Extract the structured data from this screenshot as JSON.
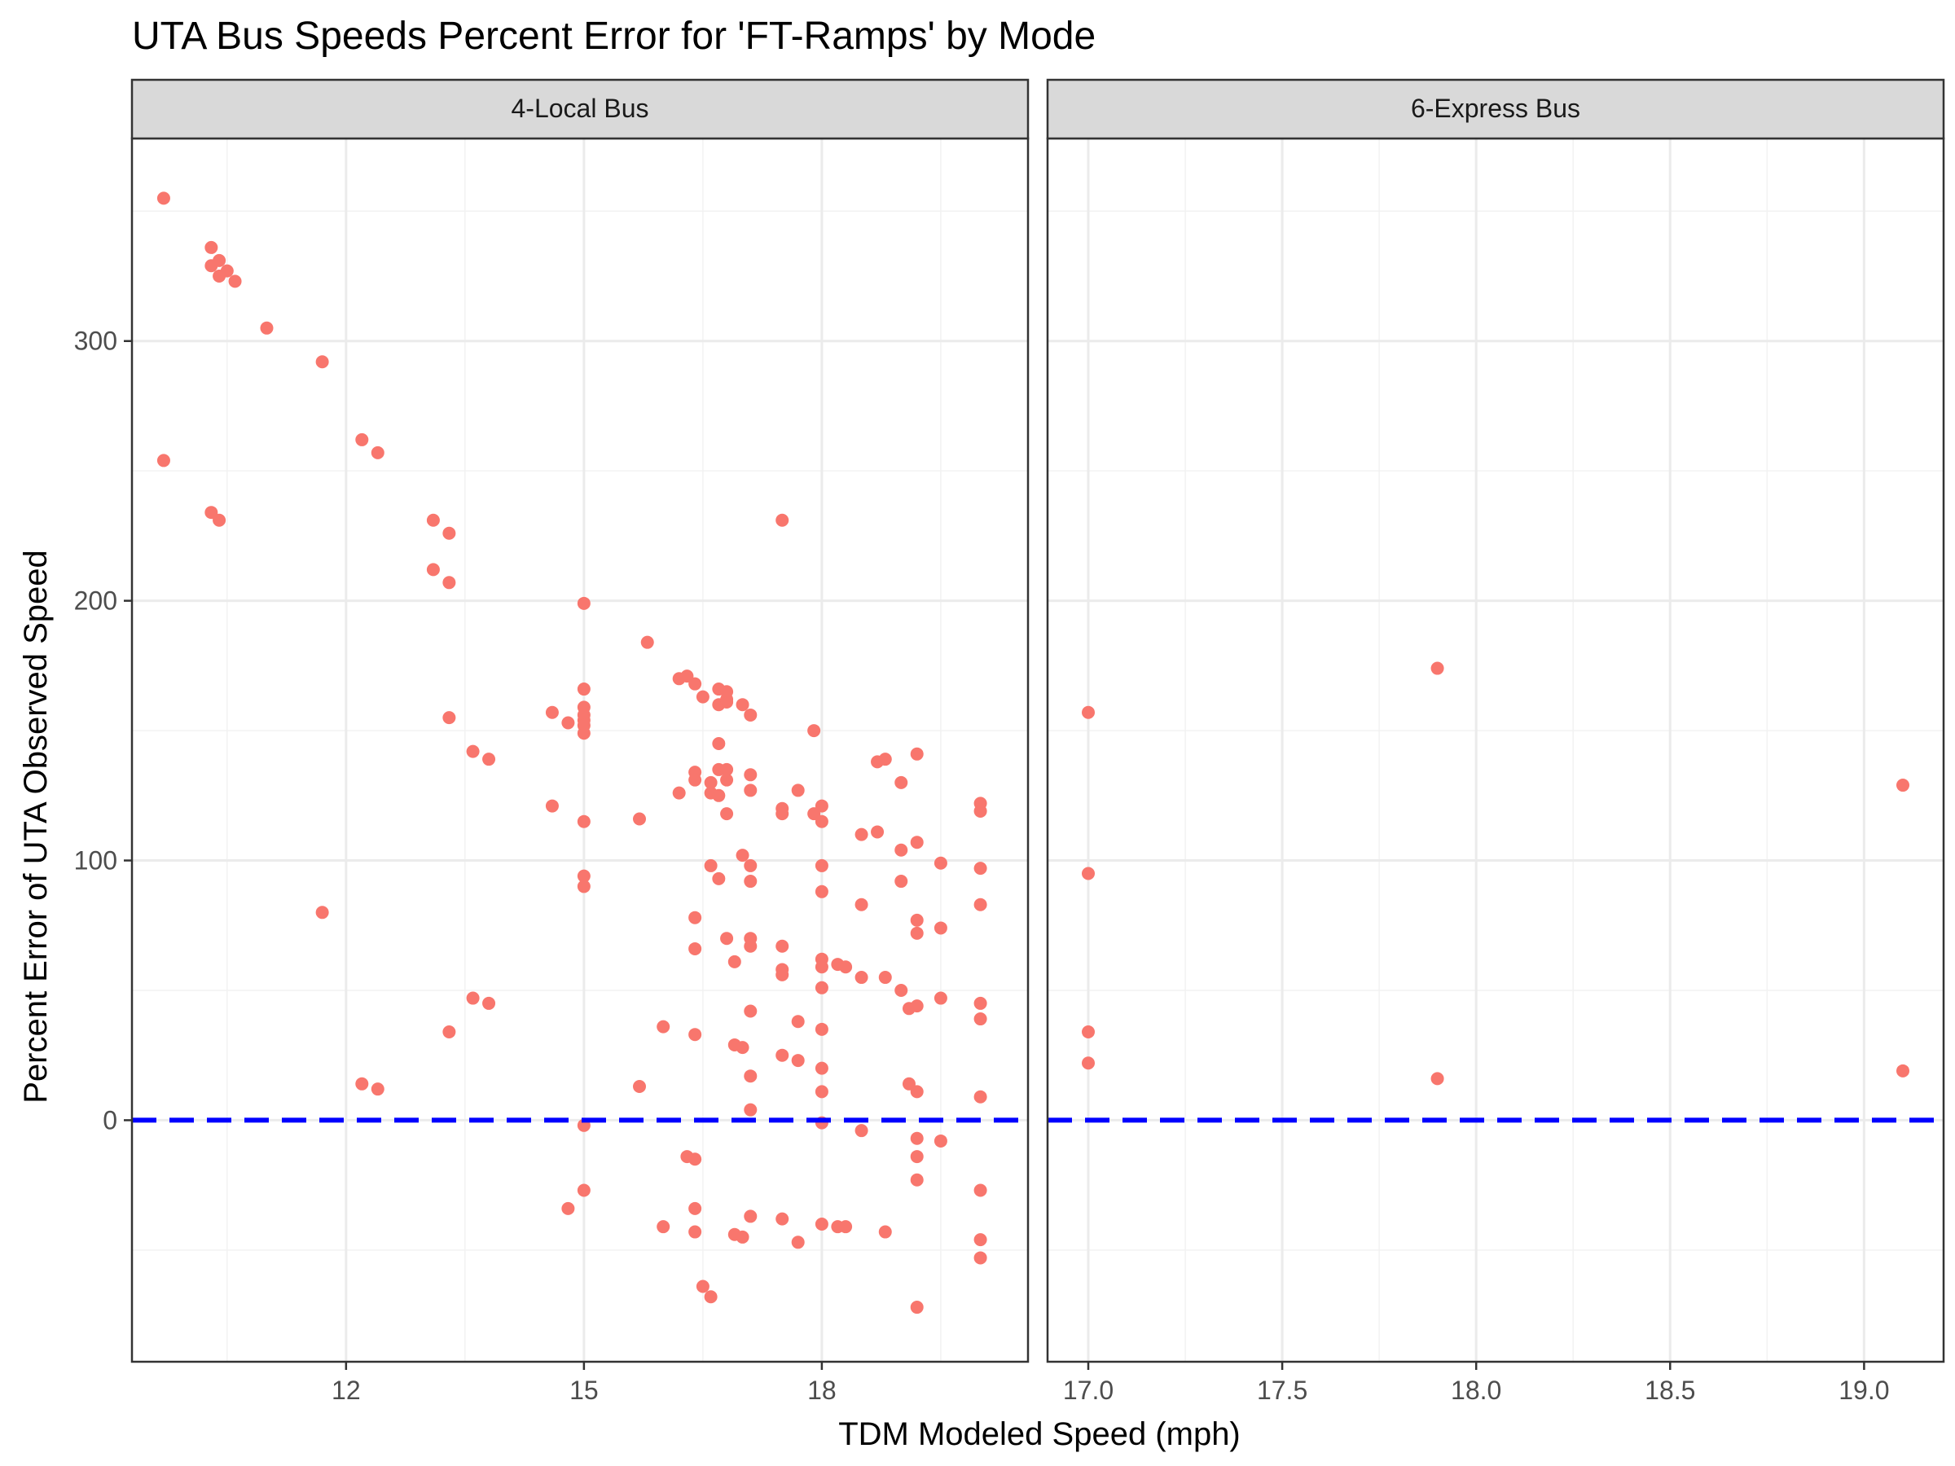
{
  "chart_data": {
    "type": "scatter",
    "title": "UTA Bus Speeds Percent Error for 'FT-Ramps' by Mode",
    "xlabel": "TDM Modeled Speed (mph)",
    "ylabel": "Percent Error of UTA Observed Speed",
    "y_ticks": [
      0,
      100,
      200,
      300
    ],
    "ylim": [
      -93,
      378
    ],
    "reference_line": {
      "y": 0,
      "style": "dashed",
      "color": "#0000FF"
    },
    "grid": true,
    "point_color": "#F8766D",
    "panels": [
      {
        "label": "4-Local Bus",
        "xlim": [
          9.3,
          20.6
        ],
        "x_ticks": [
          12,
          15,
          18
        ],
        "points": [
          [
            9.7,
            355
          ],
          [
            9.7,
            254
          ],
          [
            10.3,
            336
          ],
          [
            10.3,
            329
          ],
          [
            10.4,
            331
          ],
          [
            10.4,
            325
          ],
          [
            10.5,
            327
          ],
          [
            10.6,
            323
          ],
          [
            10.3,
            234
          ],
          [
            10.4,
            231
          ],
          [
            11.0,
            305
          ],
          [
            11.7,
            292
          ],
          [
            11.7,
            80
          ],
          [
            12.2,
            262
          ],
          [
            12.2,
            14
          ],
          [
            12.4,
            257
          ],
          [
            12.4,
            12
          ],
          [
            13.1,
            231
          ],
          [
            13.1,
            212
          ],
          [
            13.3,
            226
          ],
          [
            13.3,
            207
          ],
          [
            13.3,
            155
          ],
          [
            13.3,
            34
          ],
          [
            13.6,
            142
          ],
          [
            13.6,
            47
          ],
          [
            13.8,
            139
          ],
          [
            13.8,
            45
          ],
          [
            14.6,
            157
          ],
          [
            14.6,
            121
          ],
          [
            14.8,
            153
          ],
          [
            14.8,
            -34
          ],
          [
            15.0,
            199
          ],
          [
            15.0,
            166
          ],
          [
            15.0,
            159
          ],
          [
            15.0,
            156
          ],
          [
            15.0,
            154
          ],
          [
            15.0,
            152
          ],
          [
            15.0,
            149
          ],
          [
            15.0,
            115
          ],
          [
            15.0,
            94
          ],
          [
            15.0,
            90
          ],
          [
            15.0,
            -2
          ],
          [
            15.0,
            -27
          ],
          [
            15.7,
            116
          ],
          [
            15.7,
            13
          ],
          [
            15.8,
            184
          ],
          [
            16.0,
            36
          ],
          [
            16.0,
            -41
          ],
          [
            16.2,
            170
          ],
          [
            16.2,
            126
          ],
          [
            16.3,
            171
          ],
          [
            16.3,
            -14
          ],
          [
            16.4,
            168
          ],
          [
            16.4,
            134
          ],
          [
            16.4,
            131
          ],
          [
            16.4,
            78
          ],
          [
            16.4,
            66
          ],
          [
            16.4,
            33
          ],
          [
            16.4,
            -15
          ],
          [
            16.4,
            -34
          ],
          [
            16.4,
            -43
          ],
          [
            16.5,
            163
          ],
          [
            16.5,
            -64
          ],
          [
            16.6,
            130
          ],
          [
            16.6,
            126
          ],
          [
            16.6,
            98
          ],
          [
            16.6,
            -68
          ],
          [
            16.7,
            166
          ],
          [
            16.7,
            160
          ],
          [
            16.7,
            145
          ],
          [
            16.7,
            135
          ],
          [
            16.7,
            125
          ],
          [
            16.7,
            93
          ],
          [
            16.8,
            161
          ],
          [
            16.8,
            162
          ],
          [
            16.8,
            165
          ],
          [
            16.8,
            135
          ],
          [
            16.8,
            131
          ],
          [
            16.8,
            118
          ],
          [
            16.8,
            70
          ],
          [
            16.9,
            61
          ],
          [
            16.9,
            29
          ],
          [
            16.9,
            -44
          ],
          [
            17.0,
            160
          ],
          [
            17.0,
            102
          ],
          [
            17.0,
            28
          ],
          [
            17.0,
            -45
          ],
          [
            17.1,
            156
          ],
          [
            17.1,
            133
          ],
          [
            17.1,
            127
          ],
          [
            17.1,
            98
          ],
          [
            17.1,
            92
          ],
          [
            17.1,
            70
          ],
          [
            17.1,
            67
          ],
          [
            17.1,
            42
          ],
          [
            17.1,
            17
          ],
          [
            17.1,
            4
          ],
          [
            17.1,
            -37
          ],
          [
            17.5,
            231
          ],
          [
            17.5,
            120
          ],
          [
            17.5,
            118
          ],
          [
            17.5,
            67
          ],
          [
            17.5,
            58
          ],
          [
            17.5,
            56
          ],
          [
            17.5,
            25
          ],
          [
            17.5,
            -38
          ],
          [
            17.7,
            127
          ],
          [
            17.7,
            38
          ],
          [
            17.7,
            23
          ],
          [
            17.7,
            -47
          ],
          [
            17.9,
            150
          ],
          [
            17.9,
            118
          ],
          [
            18.0,
            121
          ],
          [
            18.0,
            115
          ],
          [
            18.0,
            98
          ],
          [
            18.0,
            88
          ],
          [
            18.0,
            62
          ],
          [
            18.0,
            59
          ],
          [
            18.0,
            51
          ],
          [
            18.0,
            35
          ],
          [
            18.0,
            20
          ],
          [
            18.0,
            11
          ],
          [
            18.0,
            -1
          ],
          [
            18.0,
            -40
          ],
          [
            18.2,
            60
          ],
          [
            18.2,
            -41
          ],
          [
            18.3,
            59
          ],
          [
            18.3,
            -41
          ],
          [
            18.5,
            110
          ],
          [
            18.5,
            83
          ],
          [
            18.5,
            55
          ],
          [
            18.5,
            -4
          ],
          [
            18.7,
            111
          ],
          [
            18.7,
            138
          ],
          [
            18.8,
            139
          ],
          [
            18.8,
            55
          ],
          [
            18.8,
            -43
          ],
          [
            19.0,
            130
          ],
          [
            19.0,
            104
          ],
          [
            19.0,
            92
          ],
          [
            19.0,
            50
          ],
          [
            19.1,
            43
          ],
          [
            19.1,
            14
          ],
          [
            19.2,
            141
          ],
          [
            19.2,
            107
          ],
          [
            19.2,
            77
          ],
          [
            19.2,
            72
          ],
          [
            19.2,
            44
          ],
          [
            19.2,
            11
          ],
          [
            19.2,
            -7
          ],
          [
            19.2,
            -14
          ],
          [
            19.2,
            -23
          ],
          [
            19.2,
            -72
          ],
          [
            19.5,
            99
          ],
          [
            19.5,
            74
          ],
          [
            19.5,
            47
          ],
          [
            19.5,
            -8
          ],
          [
            20.0,
            122
          ],
          [
            20.0,
            119
          ],
          [
            20.0,
            97
          ],
          [
            20.0,
            83
          ],
          [
            20.0,
            45
          ],
          [
            20.0,
            39
          ],
          [
            20.0,
            9
          ],
          [
            20.0,
            -27
          ],
          [
            20.0,
            -46
          ],
          [
            20.0,
            -53
          ]
        ]
      },
      {
        "label": "6-Express Bus",
        "xlim": [
          16.895,
          19.205
        ],
        "x_ticks": [
          17.0,
          17.5,
          18.0,
          18.5,
          19.0
        ],
        "x_tick_labels": [
          "17.0",
          "17.5",
          "18.0",
          "18.5",
          "19.0"
        ],
        "points": [
          [
            17.0,
            157
          ],
          [
            17.0,
            95
          ],
          [
            17.0,
            34
          ],
          [
            17.0,
            22
          ],
          [
            17.9,
            174
          ],
          [
            17.9,
            16
          ],
          [
            19.1,
            129
          ],
          [
            19.1,
            19
          ]
        ]
      }
    ]
  }
}
